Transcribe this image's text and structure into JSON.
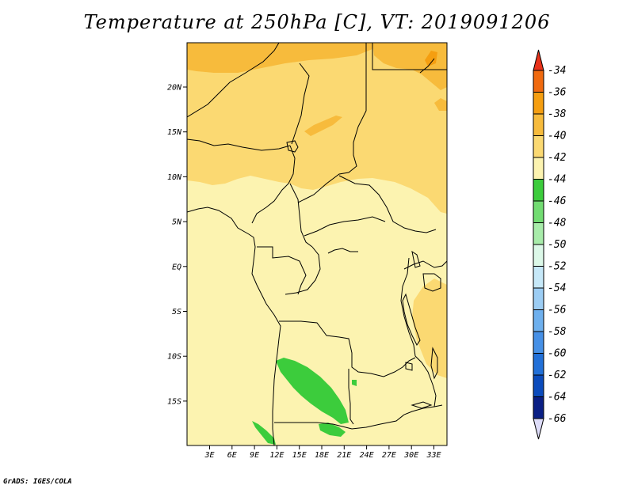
{
  "title": "Temperature at 250hPa [C], VT: 2019091206",
  "credit": "GrADS: IGES/COLA",
  "map": {
    "lat_labels": [
      "20N",
      "15N",
      "10N",
      "5N",
      "EQ",
      "5S",
      "10S",
      "15S"
    ],
    "lon_labels": [
      "3E",
      "6E",
      "9E",
      "12E",
      "15E",
      "18E",
      "21E",
      "24E",
      "27E",
      "30E",
      "33E"
    ]
  },
  "colorbar": {
    "levels": [
      "-34",
      "-36",
      "-38",
      "-40",
      "-42",
      "-44",
      "-46",
      "-48",
      "-50",
      "-52",
      "-54",
      "-56",
      "-58",
      "-60",
      "-62",
      "-64",
      "-66"
    ],
    "colors": [
      "#e8321a",
      "#f06a0f",
      "#f59e10",
      "#f7bb3c",
      "#fbd972",
      "#fcf3b0",
      "#3ccc3c",
      "#72dc72",
      "#a8ecaa",
      "#dcf8e8",
      "#c6e8f8",
      "#9ccdf4",
      "#6eb0ee",
      "#4690e6",
      "#2270d8",
      "#0b4bbc",
      "#0a1f85",
      "#dddcf8"
    ]
  }
}
